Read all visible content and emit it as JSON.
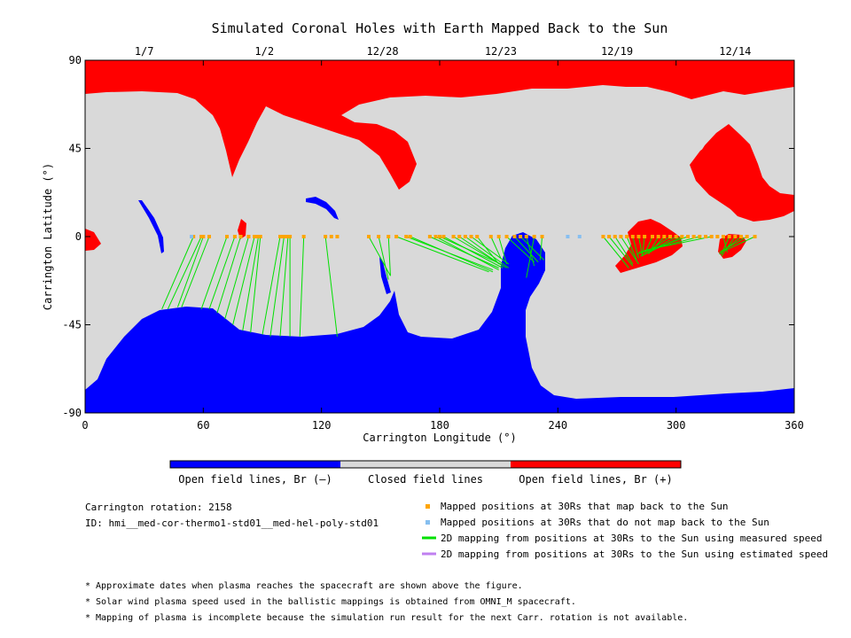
{
  "chart_data": {
    "type": "map",
    "title": "Simulated Coronal Holes with Earth Mapped Back to the Sun",
    "xlabel": "Carrington Longitude (°)",
    "ylabel": "Carrington Latitude (°)",
    "xlim": [
      0,
      360
    ],
    "ylim": [
      -90,
      90
    ],
    "x_ticks": [
      "0",
      "60",
      "120",
      "180",
      "240",
      "300",
      "360"
    ],
    "y_ticks": [
      "90",
      "45",
      "0",
      "-45",
      "-90"
    ],
    "top_axis": {
      "labels": [
        {
          "lon": 30,
          "text": "1/7"
        },
        {
          "lon": 91,
          "text": "1/2"
        },
        {
          "lon": 151,
          "text": "12/28"
        },
        {
          "lon": 211,
          "text": "12/23"
        },
        {
          "lon": 270,
          "text": "12/19"
        },
        {
          "lon": 330,
          "text": "12/14"
        }
      ]
    },
    "colors": {
      "open_negative": "#0000ff",
      "closed": "#d9d9d9",
      "open_positive": "#ff0000",
      "mapped": "#ffa500",
      "not_mapped": "#87bff0",
      "measured": "#00e000",
      "estimated": "#c080f0"
    },
    "colorbar": [
      {
        "label": "Open field lines, Br (–)",
        "color": "#0000ff"
      },
      {
        "label": "Closed field lines",
        "color": "#d9d9d9"
      },
      {
        "label": "Open field lines, Br (+)",
        "color": "#ff0000"
      }
    ],
    "mapped_positions": [
      55,
      59,
      60,
      63,
      72,
      76,
      79,
      83,
      86,
      87,
      88,
      89,
      99,
      100,
      101,
      102,
      103,
      104,
      111,
      122,
      125,
      128,
      144,
      149,
      154,
      158,
      163,
      165,
      175,
      178,
      180,
      182,
      187,
      190,
      193,
      196,
      199,
      206,
      210,
      214,
      218,
      221,
      224,
      228,
      232,
      263,
      266,
      269,
      272,
      275,
      278,
      281,
      284,
      288,
      291,
      294,
      297,
      300,
      303,
      306,
      309,
      312,
      315,
      318,
      321,
      324,
      327,
      330,
      333,
      336,
      340
    ],
    "not_mapped_positions": [
      54,
      245,
      251
    ],
    "mappings": [
      {
        "from": 55,
        "to": [
          39,
          -37
        ]
      },
      {
        "from": 59,
        "to": [
          42,
          -37
        ]
      },
      {
        "from": 60,
        "to": [
          47,
          -36
        ]
      },
      {
        "from": 63,
        "to": [
          49,
          -36
        ]
      },
      {
        "from": 72,
        "to": [
          59,
          -37
        ]
      },
      {
        "from": 76,
        "to": [
          63,
          -37
        ]
      },
      {
        "from": 79,
        "to": [
          67,
          -39
        ]
      },
      {
        "from": 83,
        "to": [
          71,
          -42
        ]
      },
      {
        "from": 86,
        "to": [
          75,
          -45
        ]
      },
      {
        "from": 88,
        "to": [
          80,
          -48
        ]
      },
      {
        "from": 89,
        "to": [
          84,
          -49
        ]
      },
      {
        "from": 99,
        "to": [
          90,
          -50
        ]
      },
      {
        "from": 101,
        "to": [
          94,
          -51
        ]
      },
      {
        "from": 103,
        "to": [
          99,
          -51
        ]
      },
      {
        "from": 104,
        "to": [
          104,
          -51
        ]
      },
      {
        "from": 111,
        "to": [
          109,
          -51
        ]
      },
      {
        "from": 122,
        "to": [
          128,
          -51
        ]
      },
      {
        "from": 144,
        "to": [
          155,
          -20
        ]
      },
      {
        "from": 149,
        "to": [
          154,
          -22
        ]
      },
      {
        "from": 154,
        "to": [
          155,
          -20
        ]
      },
      {
        "from": 158,
        "to": [
          205,
          -18
        ]
      },
      {
        "from": 163,
        "to": [
          207,
          -17
        ]
      },
      {
        "from": 165,
        "to": [
          207,
          -18
        ]
      },
      {
        "from": 175,
        "to": [
          210,
          -16
        ]
      },
      {
        "from": 178,
        "to": [
          210,
          -17
        ]
      },
      {
        "from": 180,
        "to": [
          211,
          -14
        ]
      },
      {
        "from": 182,
        "to": [
          212,
          -16
        ]
      },
      {
        "from": 187,
        "to": [
          214,
          -16
        ]
      },
      {
        "from": 190,
        "to": [
          212,
          -15
        ]
      },
      {
        "from": 193,
        "to": [
          215,
          -16
        ]
      },
      {
        "from": 196,
        "to": [
          215,
          -14
        ]
      },
      {
        "from": 199,
        "to": [
          210,
          -14
        ]
      },
      {
        "from": 206,
        "to": [
          211,
          -11
        ]
      },
      {
        "from": 210,
        "to": [
          214,
          -14
        ]
      },
      {
        "from": 214,
        "to": [
          228,
          -13
        ]
      },
      {
        "from": 218,
        "to": [
          230,
          -13
        ]
      },
      {
        "from": 221,
        "to": [
          233,
          -12
        ]
      },
      {
        "from": 224,
        "to": [
          228,
          -15
        ]
      },
      {
        "from": 228,
        "to": [
          224,
          -21
        ]
      },
      {
        "from": 232,
        "to": [
          231,
          -12
        ]
      },
      {
        "from": 263,
        "to": [
          276,
          -16
        ]
      },
      {
        "from": 266,
        "to": [
          278,
          -15
        ]
      },
      {
        "from": 269,
        "to": [
          278,
          -14
        ]
      },
      {
        "from": 272,
        "to": [
          281,
          -14
        ]
      },
      {
        "from": 275,
        "to": [
          280,
          -12
        ]
      },
      {
        "from": 278,
        "to": [
          281,
          -11
        ]
      },
      {
        "from": 281,
        "to": [
          283,
          -10
        ]
      },
      {
        "from": 284,
        "to": [
          283,
          -9
        ]
      },
      {
        "from": 288,
        "to": [
          284,
          -9
        ]
      },
      {
        "from": 291,
        "to": [
          286,
          -9
        ]
      },
      {
        "from": 294,
        "to": [
          287,
          -8
        ]
      },
      {
        "from": 297,
        "to": [
          285,
          -8
        ]
      },
      {
        "from": 300,
        "to": [
          286,
          -8
        ]
      },
      {
        "from": 303,
        "to": [
          282,
          -10
        ]
      },
      {
        "from": 306,
        "to": [
          280,
          -9
        ]
      },
      {
        "from": 312,
        "to": [
          281,
          -8
        ]
      },
      {
        "from": 318,
        "to": [
          284,
          -7
        ]
      },
      {
        "from": 324,
        "to": [
          326,
          -8
        ]
      },
      {
        "from": 327,
        "to": [
          323,
          -9
        ]
      },
      {
        "from": 330,
        "to": [
          323,
          -10
        ]
      },
      {
        "from": 333,
        "to": [
          322,
          -9
        ]
      },
      {
        "from": 336,
        "to": [
          322,
          -8
        ]
      },
      {
        "from": 340,
        "to": [
          325,
          -7
        ]
      }
    ],
    "legend": [
      {
        "kind": "square",
        "color": "#ffa500",
        "label": "Mapped positions at 30Rs that map back to the Sun"
      },
      {
        "kind": "square",
        "color": "#87bff0",
        "label": "Mapped positions at 30Rs that do not map back to the Sun"
      },
      {
        "kind": "line",
        "color": "#00e000",
        "label": "2D mapping from positions at 30Rs to the Sun using measured speed"
      },
      {
        "kind": "line",
        "color": "#c080f0",
        "label": "2D mapping from positions at 30Rs to the Sun using estimated speed"
      }
    ]
  },
  "info": {
    "rotation": "Carrington rotation: 2158",
    "id": "ID: hmi__med-cor-thermo1-std01__med-hel-poly-std01"
  },
  "notes": [
    "* Approximate dates when plasma reaches the spacecraft are shown above the figure.",
    "* Solar wind plasma speed used in the ballistic mappings is obtained from OMNI_M spacecraft.",
    "* Mapping of plasma is incomplete because the simulation run result for the next Carr. rotation is not available."
  ]
}
